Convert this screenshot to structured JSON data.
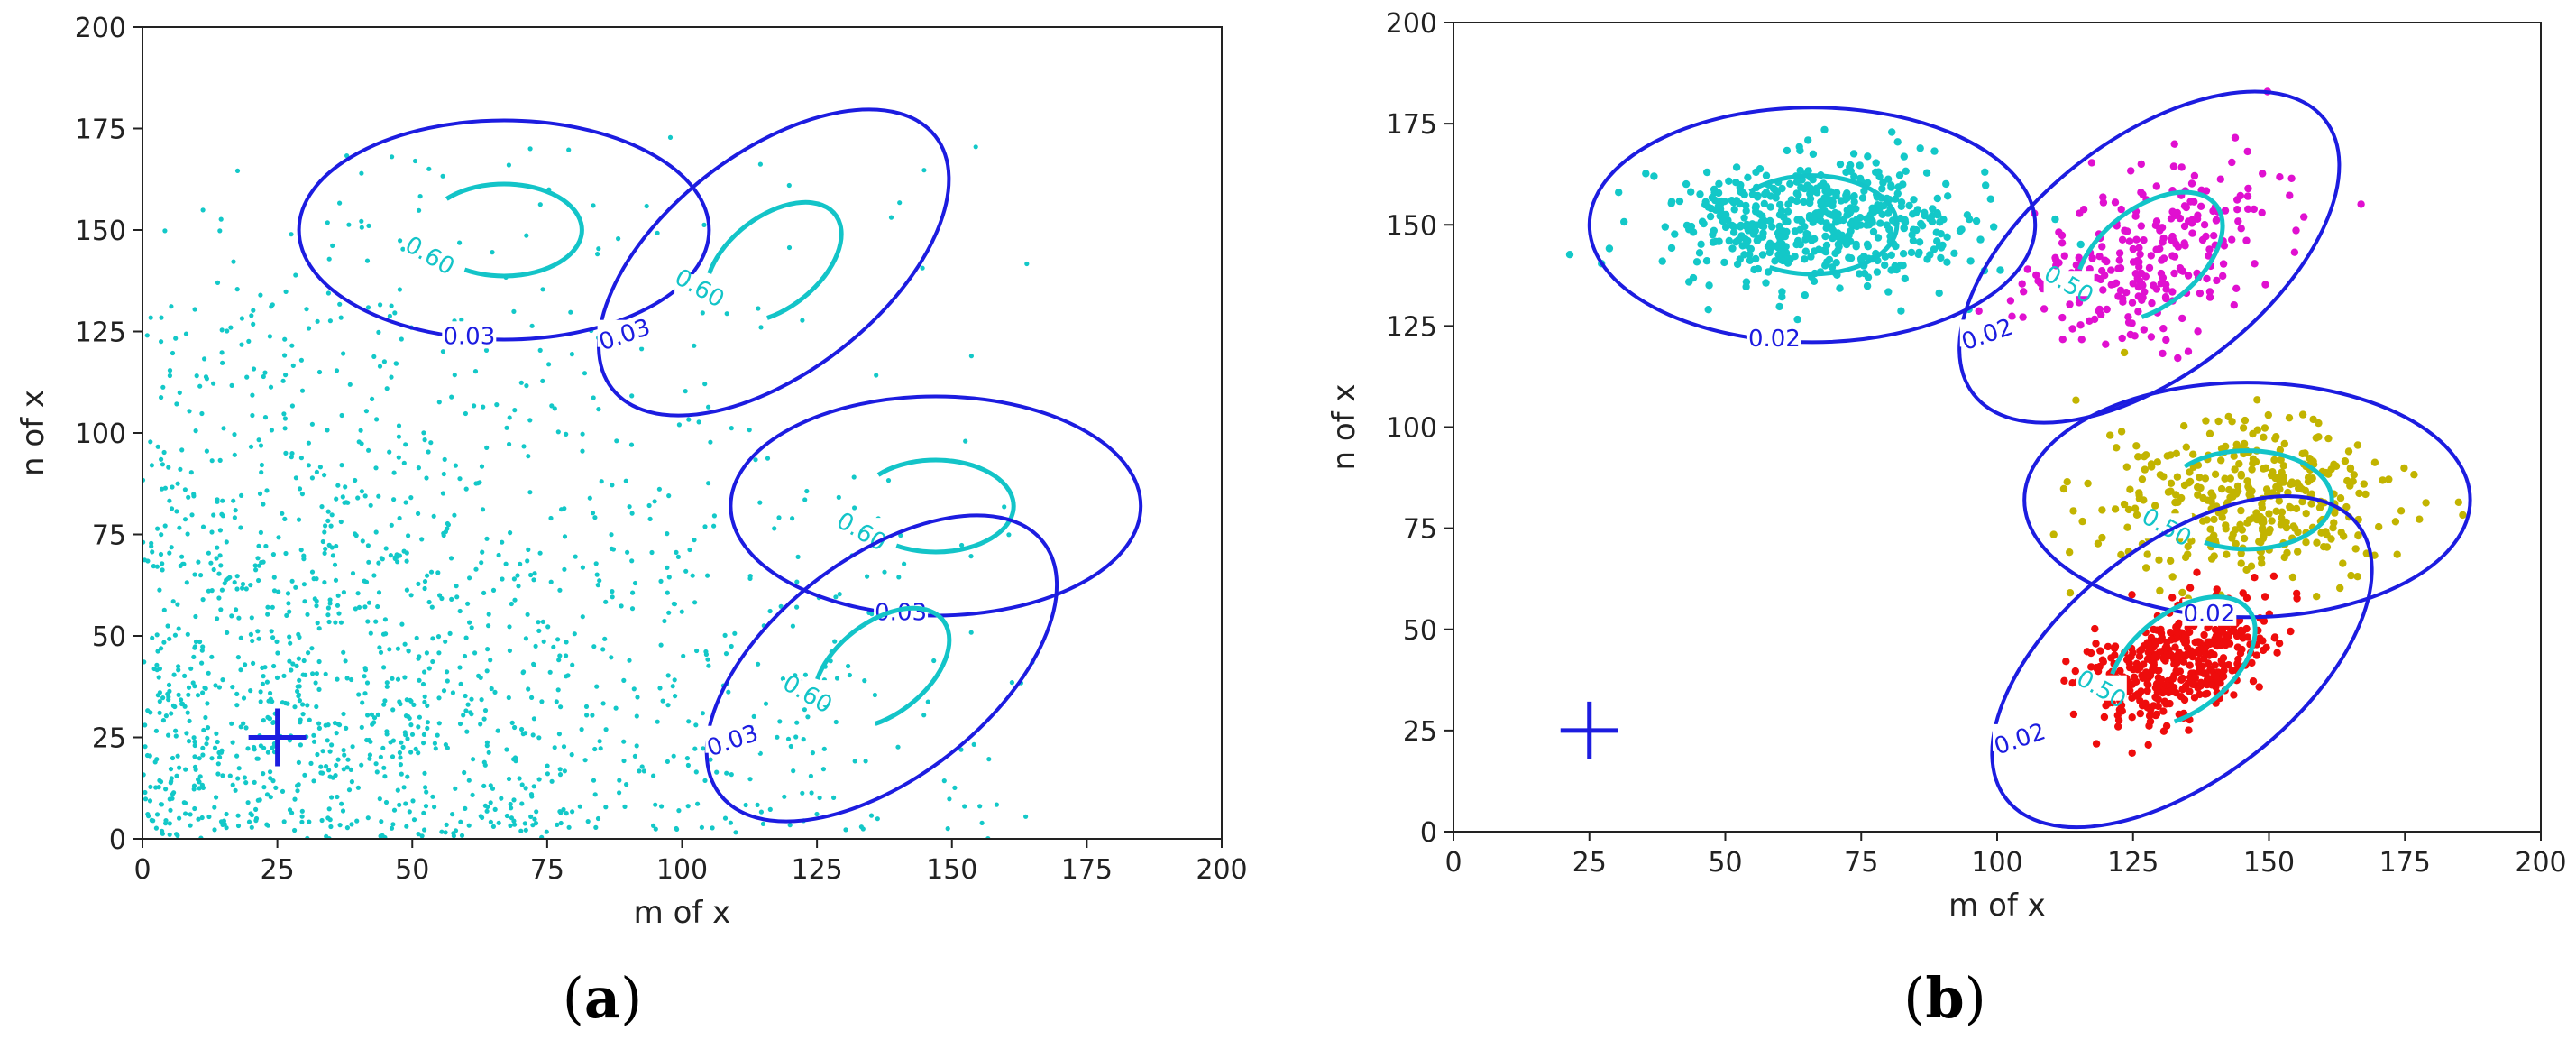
{
  "colors": {
    "outer_contour": "#1c1ce0",
    "inner_contour": "#13c4c8",
    "marker": "#1c1ce0",
    "cyan_points": "#13c8c8",
    "magenta_points": "#e010d0",
    "olive_points": "#c2b400",
    "red_points": "#ee0c0c"
  },
  "chart_data": [
    {
      "type": "scatter",
      "panel_label": "a",
      "xlabel": "m of x",
      "ylabel": "n of x",
      "xlim": [
        0,
        200
      ],
      "ylim": [
        0,
        200
      ],
      "xticks": [
        "0",
        "25",
        "50",
        "75",
        "100",
        "125",
        "150",
        "175",
        "200"
      ],
      "yticks": [
        "0",
        "25",
        "50",
        "75",
        "100",
        "125",
        "150",
        "175",
        "200"
      ],
      "grid": false,
      "marker": {
        "shape": "plus",
        "x": 25,
        "y": 25
      },
      "scatter": {
        "distribution": "uniform-decaying",
        "count": 1500,
        "color": "cyan_points",
        "x_range": [
          0,
          165
        ],
        "y_range": [
          0,
          175
        ]
      },
      "components": [
        {
          "cx": 67,
          "cy": 150,
          "rx": 38,
          "ry": 27,
          "angle": 0,
          "outer_label": "0.03",
          "inner_label": "0.60"
        },
        {
          "cx": 117,
          "cy": 142,
          "rx": 38,
          "ry": 27,
          "angle": 38,
          "outer_label": "0.03",
          "inner_label": "0.60"
        },
        {
          "cx": 147,
          "cy": 82,
          "rx": 38,
          "ry": 27,
          "angle": 0,
          "outer_label": "0.03",
          "inner_label": "0.60"
        },
        {
          "cx": 137,
          "cy": 42,
          "rx": 38,
          "ry": 27,
          "angle": 38,
          "outer_label": "0.03",
          "inner_label": "0.60"
        }
      ]
    },
    {
      "type": "scatter",
      "panel_label": "b",
      "xlabel": "m of x",
      "ylabel": "n of x",
      "xlim": [
        0,
        200
      ],
      "ylim": [
        0,
        200
      ],
      "xticks": [
        "0",
        "25",
        "50",
        "75",
        "100",
        "125",
        "150",
        "175",
        "200"
      ],
      "yticks": [
        "0",
        "25",
        "50",
        "75",
        "100",
        "125",
        "150",
        "175",
        "200"
      ],
      "grid": false,
      "marker": {
        "shape": "plus",
        "x": 25,
        "y": 25
      },
      "components": [
        {
          "cx": 66,
          "cy": 150,
          "rx": 41,
          "ry": 29,
          "angle": 0,
          "outer_label": "0.02",
          "inner_label": "",
          "cluster": {
            "count": 520,
            "sx": 14,
            "sy": 8,
            "color": "cyan_points"
          }
        },
        {
          "cx": 128,
          "cy": 142,
          "rx": 41,
          "ry": 29,
          "angle": 38,
          "outer_label": "0.02",
          "inner_label": "0.50",
          "cluster": {
            "count": 260,
            "sx": 13,
            "sy": 9,
            "color": "magenta_points"
          }
        },
        {
          "cx": 146,
          "cy": 82,
          "rx": 41,
          "ry": 29,
          "angle": 0,
          "outer_label": "0.02",
          "inner_label": "0.50",
          "cluster": {
            "count": 360,
            "sx": 13,
            "sy": 10,
            "color": "olive_points"
          }
        },
        {
          "cx": 134,
          "cy": 42,
          "rx": 41,
          "ry": 29,
          "angle": 38,
          "outer_label": "0.02",
          "inner_label": "0.50",
          "cluster": {
            "count": 430,
            "sx": 9,
            "sy": 6,
            "color": "red_points"
          }
        }
      ]
    }
  ]
}
